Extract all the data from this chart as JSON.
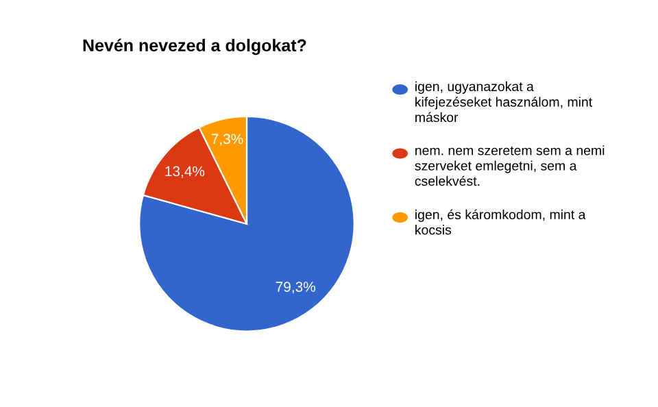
{
  "chart_data": {
    "type": "pie",
    "title": "Nevén nevezed a dolgokat?",
    "categories": [
      "igen, ugyanazokat a kifejezéseket használom, mint máskor",
      "nem. nem szeretem sem a nemi szerveket emlegetni, sem a cselekvést.",
      "igen, és káromkodom, mint a kocsis"
    ],
    "values": [
      79.3,
      13.4,
      7.3
    ],
    "colors": [
      "#3366cc",
      "#dc3912",
      "#ff9900"
    ],
    "value_labels": [
      "79,3%",
      "13,4%",
      "7,3%"
    ],
    "legend": "right"
  }
}
